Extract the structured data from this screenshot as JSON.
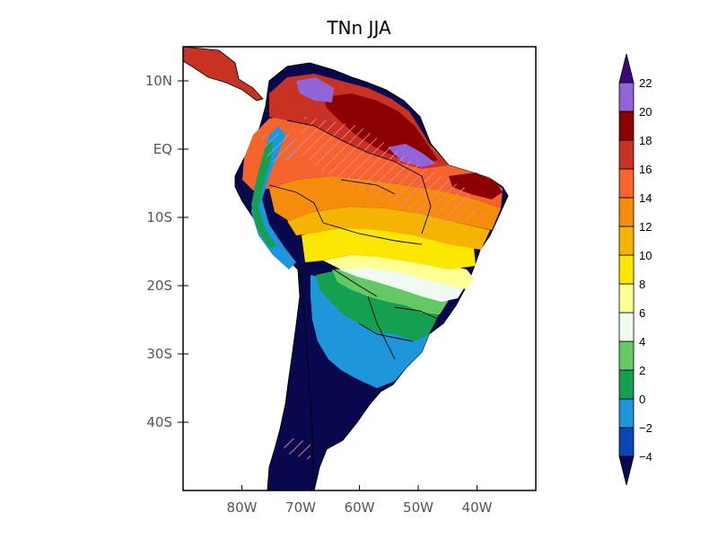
{
  "title": "TNn JJA",
  "map": {
    "lat_ticks": [
      {
        "lat": 10,
        "label": "10N"
      },
      {
        "lat": 0,
        "label": "EQ"
      },
      {
        "lat": -10,
        "label": "10S"
      },
      {
        "lat": -20,
        "label": "20S"
      },
      {
        "lat": -30,
        "label": "30S"
      },
      {
        "lat": -40,
        "label": "40S"
      }
    ],
    "lon_ticks": [
      {
        "lon": -80,
        "label": "80W"
      },
      {
        "lon": -70,
        "label": "70W"
      },
      {
        "lon": -60,
        "label": "60W"
      },
      {
        "lon": -50,
        "label": "50W"
      },
      {
        "lon": -40,
        "label": "40W"
      }
    ],
    "extent": {
      "lon_min": -90,
      "lon_max": -30,
      "lat_min": -50,
      "lat_max": 15
    }
  },
  "colorbar": {
    "levels": [
      -4,
      -2,
      0,
      2,
      4,
      6,
      8,
      10,
      12,
      14,
      16,
      18,
      20,
      22
    ],
    "colors": [
      "#08084f",
      "#0a46b4",
      "#1e96dc",
      "#14a050",
      "#64c864",
      "#f0faf0",
      "#ffff96",
      "#fae600",
      "#f5b400",
      "#f58c0a",
      "#f5642d",
      "#c83223",
      "#8c0000",
      "#9164d7",
      "#3c0a78"
    ]
  }
}
